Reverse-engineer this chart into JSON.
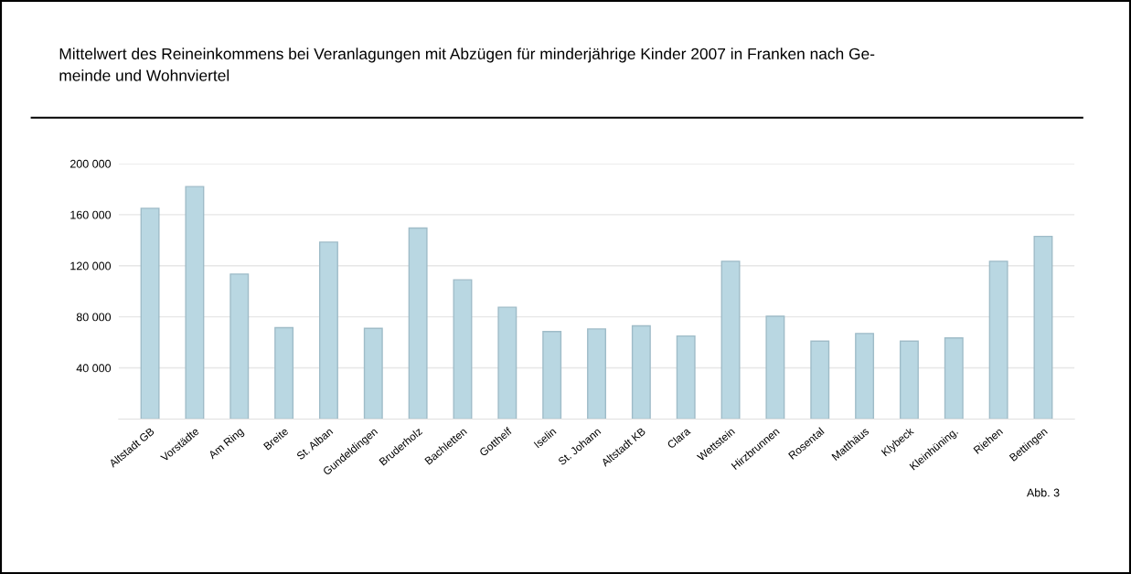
{
  "chart_data": {
    "type": "bar",
    "title": "Mittelwert des Reineinkommens bei Veranlagungen mit Abzügen für minderjährige Kinder 2007 in Franken nach Ge-\nmeinde und Wohnviertel",
    "categories": [
      "Altstadt GB",
      "Vorstädte",
      "Am Ring",
      "Breite",
      "St. Alban",
      "Gundeldingen",
      "Bruderholz",
      "Bachletten",
      "Gotthelf",
      "Iselin",
      "St. Johann",
      "Altstadt KB",
      "Clara",
      "Wettstein",
      "Hirzbrunnen",
      "Rosental",
      "Matthäus",
      "Klybeck",
      "Kleinhüning.",
      "Riehen",
      "Bettingen"
    ],
    "values": [
      165000,
      182000,
      113500,
      71500,
      138500,
      71000,
      149500,
      109000,
      87500,
      68500,
      70500,
      73000,
      65000,
      123500,
      80500,
      61000,
      67000,
      61000,
      63500,
      123500,
      143000
    ],
    "color": "#b9d7e2",
    "ylim": [
      0,
      200000
    ],
    "yticks": [
      {
        "value": 40000,
        "label": "40 000"
      },
      {
        "value": 80000,
        "label": "80 000"
      },
      {
        "value": 120000,
        "label": "120 000"
      },
      {
        "value": 160000,
        "label": "160 000"
      },
      {
        "value": 200000,
        "label": "200 000"
      }
    ],
    "grid": "y",
    "annotations": [
      "Abb. 3"
    ]
  }
}
